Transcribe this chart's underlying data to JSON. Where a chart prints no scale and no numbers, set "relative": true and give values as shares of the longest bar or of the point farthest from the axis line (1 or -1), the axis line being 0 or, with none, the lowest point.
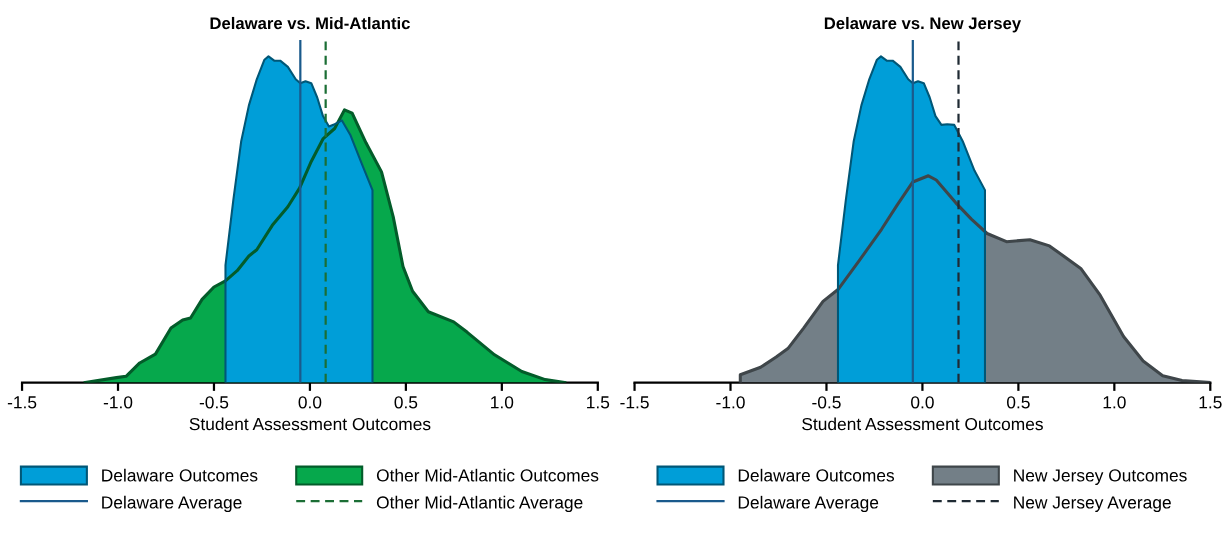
{
  "chart_data": [
    {
      "type": "area",
      "title": "Delaware vs. Mid-Atlantic",
      "xlabel": "Student Assessment Outcomes",
      "relative": true,
      "xlim": [
        -1.5,
        1.5
      ],
      "xticks": [
        -1.5,
        {
          "value": -1,
          "label": "-1.0"
        },
        -0.5,
        {
          "value": 0,
          "label": "0.0"
        },
        0.5,
        {
          "value": 1,
          "label": "1.0"
        },
        1.5
      ],
      "legend": "bottom",
      "grid": false,
      "series": [
        {
          "name": "Delaware Outcomes",
          "color": "#009ed8",
          "x": [
            -0.44,
            -0.44,
            -0.399,
            -0.358,
            -0.318,
            -0.277,
            -0.237,
            -0.216,
            -0.186,
            -0.155,
            -0.115,
            -0.074,
            -0.05,
            -0.023,
            0.007,
            0.038,
            0.068,
            0.099,
            0.129,
            0.166,
            0.21,
            0.271,
            0.326,
            0.326
          ],
          "values": [
            0,
            0.36,
            0.56,
            0.74,
            0.85,
            0.93,
            0.99,
            1.0,
            0.987,
            0.987,
            0.968,
            0.93,
            0.918,
            0.924,
            0.918,
            0.874,
            0.817,
            0.785,
            0.792,
            0.804,
            0.76,
            0.67,
            0.59,
            0
          ]
        },
        {
          "name": "Other Mid-Atlantic Outcomes",
          "color": "#06a84c",
          "x": [
            -1.171,
            -1.008,
            -0.958,
            -0.887,
            -0.805,
            -0.724,
            -0.663,
            -0.622,
            -0.562,
            -0.5,
            -0.44,
            -0.379,
            -0.318,
            -0.277,
            -0.196,
            -0.115,
            -0.054,
            0.007,
            0.068,
            0.129,
            0.18,
            0.22,
            0.292,
            0.373,
            0.434,
            0.485,
            0.535,
            0.617,
            0.749,
            0.82,
            0.962,
            1.104,
            1.226,
            1.328
          ],
          "values": [
            0,
            0.015,
            0.019,
            0.06,
            0.087,
            0.167,
            0.192,
            0.198,
            0.255,
            0.293,
            0.312,
            0.343,
            0.388,
            0.407,
            0.482,
            0.539,
            0.596,
            0.678,
            0.747,
            0.779,
            0.836,
            0.826,
            0.735,
            0.646,
            0.508,
            0.356,
            0.28,
            0.217,
            0.186,
            0.154,
            0.085,
            0.034,
            0.009,
            0
          ]
        }
      ],
      "ref_lines": [
        {
          "axis": "x",
          "value": -0.05,
          "label": "Delaware Average",
          "color": "#1a5a8c",
          "line_style": "solid"
        },
        {
          "axis": "x",
          "value": 0.082,
          "label": "Other Mid-Atlantic Average",
          "color": "#1b6e35",
          "line_style": "dashed"
        }
      ]
    },
    {
      "type": "area",
      "title": "Delaware vs. New Jersey",
      "xlabel": "Student Assessment Outcomes",
      "relative": true,
      "xlim": [
        -1.5,
        1.5
      ],
      "xticks": [
        -1.5,
        {
          "value": -1,
          "label": "-1.0"
        },
        -0.5,
        {
          "value": 0,
          "label": "0.0"
        },
        0.5,
        {
          "value": 1,
          "label": "1.0"
        },
        1.5
      ],
      "legend": "bottom",
      "grid": false,
      "series": [
        {
          "name": "Delaware Outcomes",
          "color": "#009ed8",
          "x": [
            -0.44,
            -0.44,
            -0.399,
            -0.358,
            -0.318,
            -0.277,
            -0.237,
            -0.216,
            -0.186,
            -0.155,
            -0.115,
            -0.074,
            -0.05,
            -0.023,
            0.007,
            0.038,
            0.068,
            0.099,
            0.129,
            0.166,
            0.21,
            0.271,
            0.326,
            0.326
          ],
          "values": [
            0,
            0.36,
            0.56,
            0.74,
            0.85,
            0.93,
            0.99,
            1.0,
            0.987,
            0.987,
            0.968,
            0.93,
            0.918,
            0.924,
            0.918,
            0.874,
            0.817,
            0.79,
            0.792,
            0.79,
            0.74,
            0.65,
            0.59,
            0
          ]
        },
        {
          "name": "New Jersey Outcomes",
          "color": "#737f87",
          "x": [
            -0.949,
            -0.949,
            -0.843,
            -0.762,
            -0.701,
            -0.619,
            -0.518,
            -0.437,
            -0.335,
            -0.213,
            -0.131,
            -0.05,
            0.031,
            0.072,
            0.174,
            0.255,
            0.337,
            0.438,
            0.56,
            0.662,
            0.825,
            0.926,
            1.048,
            1.15,
            1.252,
            1.353,
            1.496
          ],
          "values": [
            0,
            0.024,
            0.047,
            0.078,
            0.104,
            0.167,
            0.249,
            0.287,
            0.369,
            0.47,
            0.545,
            0.615,
            0.634,
            0.621,
            0.551,
            0.501,
            0.457,
            0.432,
            0.438,
            0.419,
            0.35,
            0.268,
            0.141,
            0.066,
            0.021,
            0.006,
            0
          ]
        }
      ],
      "ref_lines": [
        {
          "axis": "x",
          "value": -0.05,
          "label": "Delaware Average",
          "color": "#1a5a8c",
          "line_style": "solid"
        },
        {
          "axis": "x",
          "value": 0.188,
          "label": "New Jersey Average",
          "color": "#1f2a33",
          "line_style": "dashed"
        }
      ]
    }
  ]
}
